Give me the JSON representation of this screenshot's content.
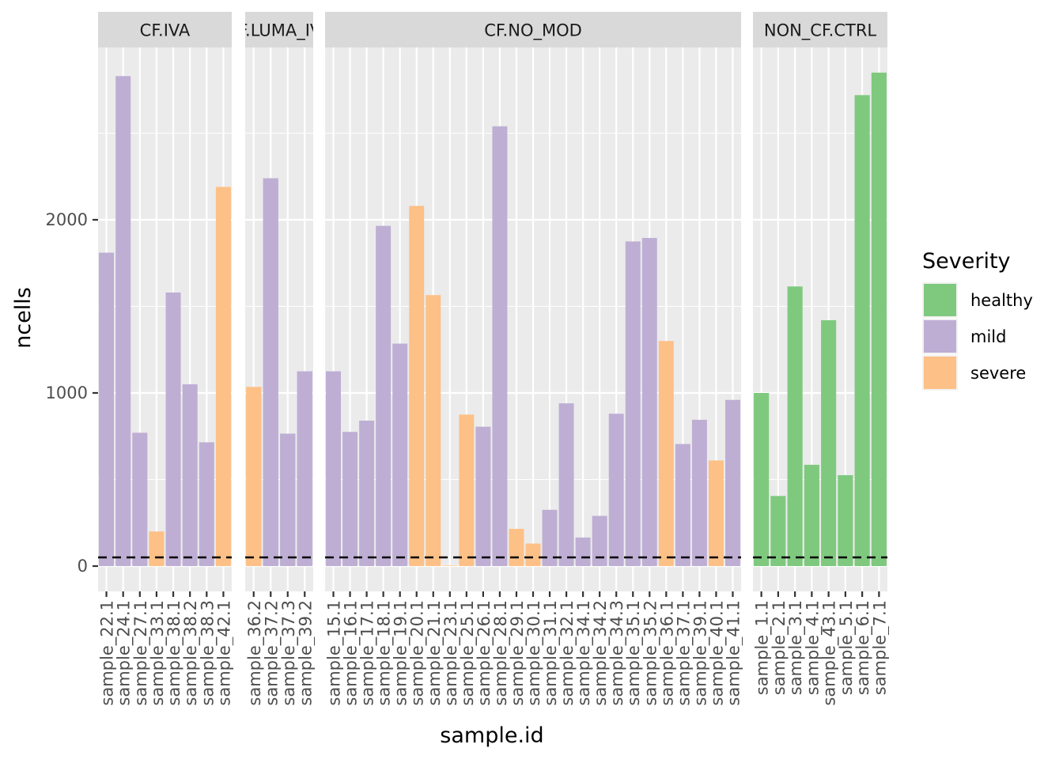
{
  "chart_data": {
    "type": "bar",
    "faceted": true,
    "xlabel": "sample.id",
    "ylabel": "ncells",
    "y_ticks": [
      0,
      1000,
      2000
    ],
    "y_tick_labels": [
      "0",
      "1000",
      "2000"
    ],
    "ylim": [
      -140,
      3000
    ],
    "threshold_line": 50,
    "legend": {
      "title": "Severity",
      "position": "right",
      "entries": [
        {
          "key": "healthy",
          "label": "healthy",
          "color": "#7FC97F"
        },
        {
          "key": "mild",
          "label": "mild",
          "color": "#BEAED4"
        },
        {
          "key": "severe",
          "label": "severe",
          "color": "#FDC086"
        }
      ]
    },
    "panels": [
      {
        "label": "CF.IVA",
        "bars": [
          {
            "sample": "sample_22.1",
            "value": 1810,
            "severity": "mild"
          },
          {
            "sample": "sample_24.1",
            "value": 2830,
            "severity": "mild"
          },
          {
            "sample": "sample_27.1",
            "value": 770,
            "severity": "mild"
          },
          {
            "sample": "sample_33.1",
            "value": 200,
            "severity": "severe"
          },
          {
            "sample": "sample_38.1",
            "value": 1580,
            "severity": "mild"
          },
          {
            "sample": "sample_38.2",
            "value": 1050,
            "severity": "mild"
          },
          {
            "sample": "sample_38.3",
            "value": 715,
            "severity": "mild"
          },
          {
            "sample": "sample_42.1",
            "value": 2190,
            "severity": "severe"
          }
        ]
      },
      {
        "label": "CF.LUMA_IVA",
        "bars": [
          {
            "sample": "sample_36.2",
            "value": 1035,
            "severity": "severe"
          },
          {
            "sample": "sample_37.2",
            "value": 2240,
            "severity": "mild"
          },
          {
            "sample": "sample_37.3",
            "value": 765,
            "severity": "mild"
          },
          {
            "sample": "sample_39.2",
            "value": 1125,
            "severity": "mild"
          }
        ]
      },
      {
        "label": "CF.NO_MOD",
        "bars": [
          {
            "sample": "sample_15.1",
            "value": 1125,
            "severity": "mild"
          },
          {
            "sample": "sample_16.1",
            "value": 775,
            "severity": "mild"
          },
          {
            "sample": "sample_17.1",
            "value": 840,
            "severity": "mild"
          },
          {
            "sample": "sample_18.1",
            "value": 1965,
            "severity": "mild"
          },
          {
            "sample": "sample_19.1",
            "value": 1285,
            "severity": "mild"
          },
          {
            "sample": "sample_20.1",
            "value": 2080,
            "severity": "severe"
          },
          {
            "sample": "sample_21.1",
            "value": 1565,
            "severity": "severe"
          },
          {
            "sample": "sample_23.1",
            "value": 3,
            "severity": "severe"
          },
          {
            "sample": "sample_25.1",
            "value": 875,
            "severity": "severe"
          },
          {
            "sample": "sample_26.1",
            "value": 805,
            "severity": "mild"
          },
          {
            "sample": "sample_28.1",
            "value": 2540,
            "severity": "mild"
          },
          {
            "sample": "sample_29.1",
            "value": 215,
            "severity": "severe"
          },
          {
            "sample": "sample_30.1",
            "value": 130,
            "severity": "severe"
          },
          {
            "sample": "sample_31.1",
            "value": 325,
            "severity": "mild"
          },
          {
            "sample": "sample_32.1",
            "value": 940,
            "severity": "mild"
          },
          {
            "sample": "sample_34.1",
            "value": 165,
            "severity": "mild"
          },
          {
            "sample": "sample_34.2",
            "value": 290,
            "severity": "mild"
          },
          {
            "sample": "sample_34.3",
            "value": 880,
            "severity": "mild"
          },
          {
            "sample": "sample_35.1",
            "value": 1875,
            "severity": "mild"
          },
          {
            "sample": "sample_35.2",
            "value": 1895,
            "severity": "mild"
          },
          {
            "sample": "sample_36.1",
            "value": 1300,
            "severity": "severe"
          },
          {
            "sample": "sample_37.1",
            "value": 705,
            "severity": "mild"
          },
          {
            "sample": "sample_39.1",
            "value": 845,
            "severity": "mild"
          },
          {
            "sample": "sample_40.1",
            "value": 610,
            "severity": "severe"
          },
          {
            "sample": "sample_41.1",
            "value": 960,
            "severity": "mild"
          }
        ]
      },
      {
        "label": "NON_CF.CTRL",
        "bars": [
          {
            "sample": "sample_1.1",
            "value": 1000,
            "severity": "healthy"
          },
          {
            "sample": "sample_2.1",
            "value": 405,
            "severity": "healthy"
          },
          {
            "sample": "sample_3.1",
            "value": 1615,
            "severity": "healthy"
          },
          {
            "sample": "sample_4.1",
            "value": 585,
            "severity": "healthy"
          },
          {
            "sample": "sample_43.1",
            "value": 1420,
            "severity": "healthy"
          },
          {
            "sample": "sample_5.1",
            "value": 525,
            "severity": "healthy"
          },
          {
            "sample": "sample_6.1",
            "value": 2720,
            "severity": "healthy"
          },
          {
            "sample": "sample_7.1",
            "value": 2850,
            "severity": "healthy"
          }
        ]
      }
    ]
  }
}
